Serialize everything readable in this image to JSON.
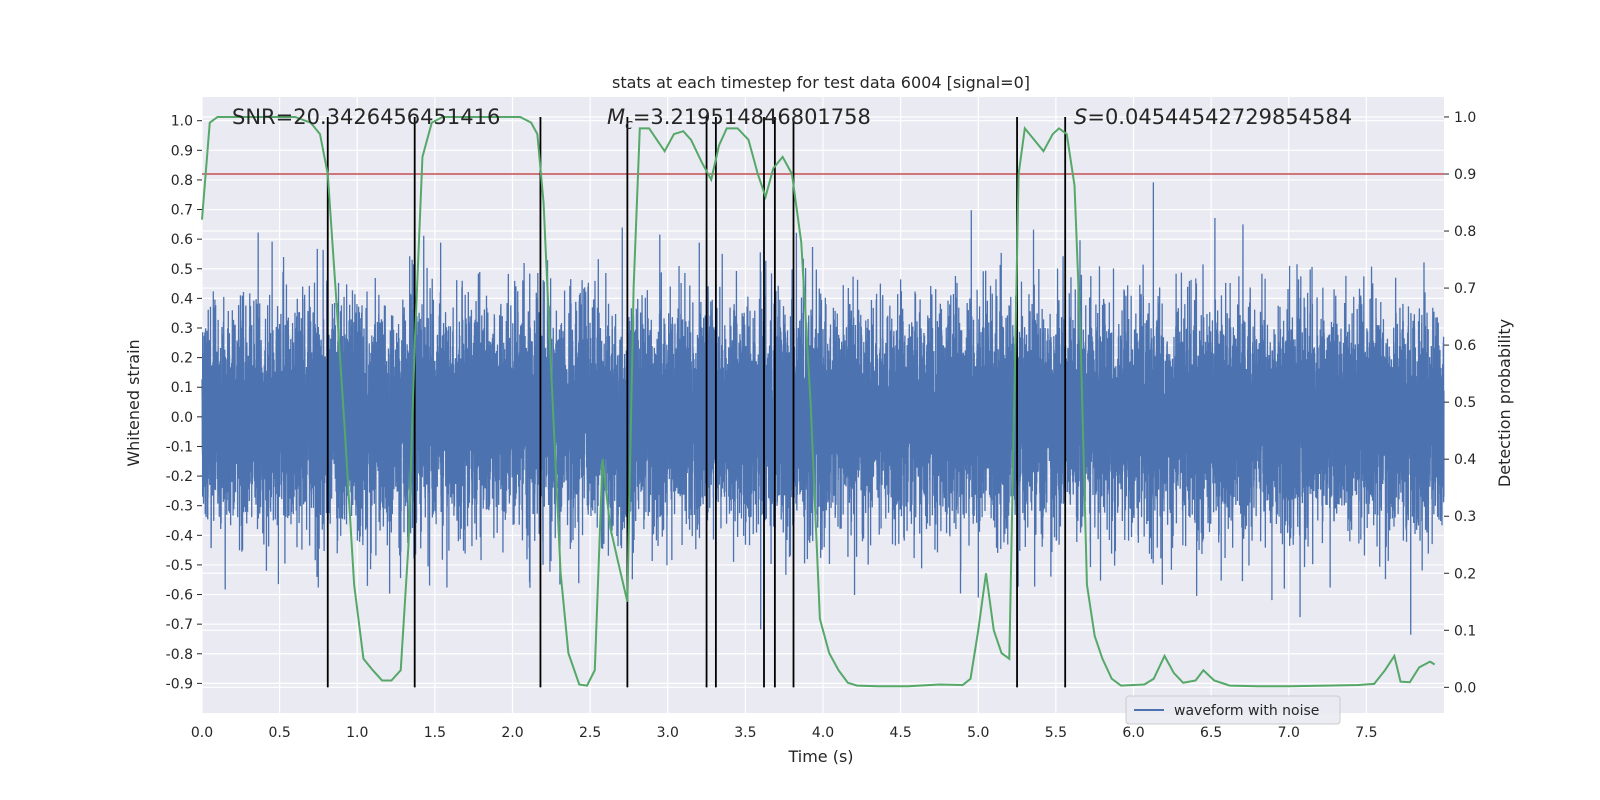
{
  "chart_data": {
    "type": "line",
    "title": "stats at each timestep for test data 6004 [signal=0]",
    "xlabel": "Time (s)",
    "ylabel_left": "Whitened strain",
    "ylabel_right": "Detection probability",
    "xlim": [
      0.0,
      8.0
    ],
    "ylim_left": [
      -1.0,
      1.08
    ],
    "ylim_right": [
      -0.045,
      1.035
    ],
    "x_ticks": [
      "0.0",
      "0.5",
      "1.0",
      "1.5",
      "2.0",
      "2.5",
      "3.0",
      "3.5",
      "4.0",
      "4.5",
      "5.0",
      "5.5",
      "6.0",
      "6.5",
      "7.0",
      "7.5"
    ],
    "y_ticks_left": [
      "1.0",
      "0.9",
      "0.8",
      "0.7",
      "0.6",
      "0.5",
      "0.4",
      "0.3",
      "0.2",
      "0.1",
      "0.0",
      "-0.1",
      "-0.2",
      "-0.3",
      "-0.4",
      "-0.5",
      "-0.6",
      "-0.7",
      "-0.8",
      "-0.9"
    ],
    "y_ticks_right": [
      "1.0",
      "0.9",
      "0.8",
      "0.7",
      "0.6",
      "0.5",
      "0.4",
      "0.3",
      "0.2",
      "0.1",
      "0.0"
    ],
    "annotations": {
      "snr": "SNR=20.3426456451416",
      "mc_symbol": "M",
      "mc_sub": "c",
      "mc_value": "=3.219514846801758",
      "s_symbol": "S",
      "s_value": "=0.04544542729854584"
    },
    "legend": {
      "label": "waveform with noise",
      "placement": "lower-right"
    },
    "grid": true,
    "threshold_line": {
      "y_right": 0.9,
      "color": "#c44e52"
    },
    "vertical_lines": [
      0.81,
      1.37,
      2.18,
      2.74,
      3.25,
      3.31,
      3.62,
      3.69,
      3.81,
      5.25,
      5.56
    ],
    "probability_series": {
      "name": "Detection probability",
      "color": "#55a868",
      "points": [
        [
          0.0,
          0.82
        ],
        [
          0.05,
          0.99
        ],
        [
          0.1,
          1.0
        ],
        [
          0.2,
          1.0
        ],
        [
          0.4,
          1.0
        ],
        [
          0.6,
          1.0
        ],
        [
          0.7,
          0.99
        ],
        [
          0.76,
          0.97
        ],
        [
          0.81,
          0.9
        ],
        [
          0.86,
          0.7
        ],
        [
          0.92,
          0.45
        ],
        [
          0.98,
          0.18
        ],
        [
          1.04,
          0.05
        ],
        [
          1.1,
          0.03
        ],
        [
          1.16,
          0.012
        ],
        [
          1.22,
          0.012
        ],
        [
          1.28,
          0.03
        ],
        [
          1.33,
          0.25
        ],
        [
          1.37,
          0.6
        ],
        [
          1.42,
          0.93
        ],
        [
          1.48,
          0.99
        ],
        [
          1.55,
          1.0
        ],
        [
          1.75,
          1.0
        ],
        [
          1.95,
          1.0
        ],
        [
          2.05,
          1.0
        ],
        [
          2.12,
          0.99
        ],
        [
          2.16,
          0.97
        ],
        [
          2.2,
          0.85
        ],
        [
          2.25,
          0.55
        ],
        [
          2.31,
          0.2
        ],
        [
          2.36,
          0.06
        ],
        [
          2.43,
          0.005
        ],
        [
          2.48,
          0.003
        ],
        [
          2.53,
          0.03
        ],
        [
          2.58,
          0.4
        ],
        [
          2.63,
          0.28
        ],
        [
          2.68,
          0.22
        ],
        [
          2.74,
          0.15
        ],
        [
          2.78,
          0.7
        ],
        [
          2.82,
          0.98
        ],
        [
          2.88,
          0.98
        ],
        [
          2.93,
          0.96
        ],
        [
          2.98,
          0.94
        ],
        [
          3.04,
          0.97
        ],
        [
          3.1,
          0.975
        ],
        [
          3.15,
          0.96
        ],
        [
          3.22,
          0.92
        ],
        [
          3.28,
          0.89
        ],
        [
          3.33,
          0.95
        ],
        [
          3.38,
          0.98
        ],
        [
          3.45,
          0.98
        ],
        [
          3.52,
          0.96
        ],
        [
          3.58,
          0.9
        ],
        [
          3.63,
          0.86
        ],
        [
          3.68,
          0.91
        ],
        [
          3.74,
          0.93
        ],
        [
          3.8,
          0.9
        ],
        [
          3.86,
          0.78
        ],
        [
          3.92,
          0.5
        ],
        [
          3.98,
          0.12
        ],
        [
          4.04,
          0.06
        ],
        [
          4.1,
          0.03
        ],
        [
          4.16,
          0.008
        ],
        [
          4.22,
          0.003
        ],
        [
          4.35,
          0.002
        ],
        [
          4.55,
          0.002
        ],
        [
          4.75,
          0.005
        ],
        [
          4.9,
          0.004
        ],
        [
          4.95,
          0.015
        ],
        [
          5.0,
          0.1
        ],
        [
          5.05,
          0.2
        ],
        [
          5.1,
          0.1
        ],
        [
          5.15,
          0.06
        ],
        [
          5.2,
          0.05
        ],
        [
          5.26,
          0.9
        ],
        [
          5.3,
          0.98
        ],
        [
          5.36,
          0.96
        ],
        [
          5.42,
          0.94
        ],
        [
          5.48,
          0.97
        ],
        [
          5.52,
          0.98
        ],
        [
          5.57,
          0.97
        ],
        [
          5.62,
          0.88
        ],
        [
          5.66,
          0.6
        ],
        [
          5.7,
          0.18
        ],
        [
          5.75,
          0.09
        ],
        [
          5.8,
          0.05
        ],
        [
          5.86,
          0.015
        ],
        [
          5.92,
          0.003
        ],
        [
          6.0,
          0.004
        ],
        [
          6.07,
          0.005
        ],
        [
          6.13,
          0.015
        ],
        [
          6.2,
          0.055
        ],
        [
          6.26,
          0.025
        ],
        [
          6.32,
          0.008
        ],
        [
          6.4,
          0.012
        ],
        [
          6.45,
          0.03
        ],
        [
          6.52,
          0.012
        ],
        [
          6.62,
          0.003
        ],
        [
          6.8,
          0.002
        ],
        [
          7.0,
          0.002
        ],
        [
          7.25,
          0.003
        ],
        [
          7.45,
          0.004
        ],
        [
          7.55,
          0.006
        ],
        [
          7.62,
          0.03
        ],
        [
          7.68,
          0.055
        ],
        [
          7.72,
          0.01
        ],
        [
          7.78,
          0.009
        ],
        [
          7.84,
          0.035
        ],
        [
          7.91,
          0.045
        ],
        [
          7.94,
          0.04
        ]
      ]
    },
    "waveform_series": {
      "name": "waveform with noise",
      "color": "#4c72b0",
      "sample_rate": 2048,
      "duration_s": 8.0,
      "noise_sigma": 0.18,
      "seed": 6004
    }
  }
}
